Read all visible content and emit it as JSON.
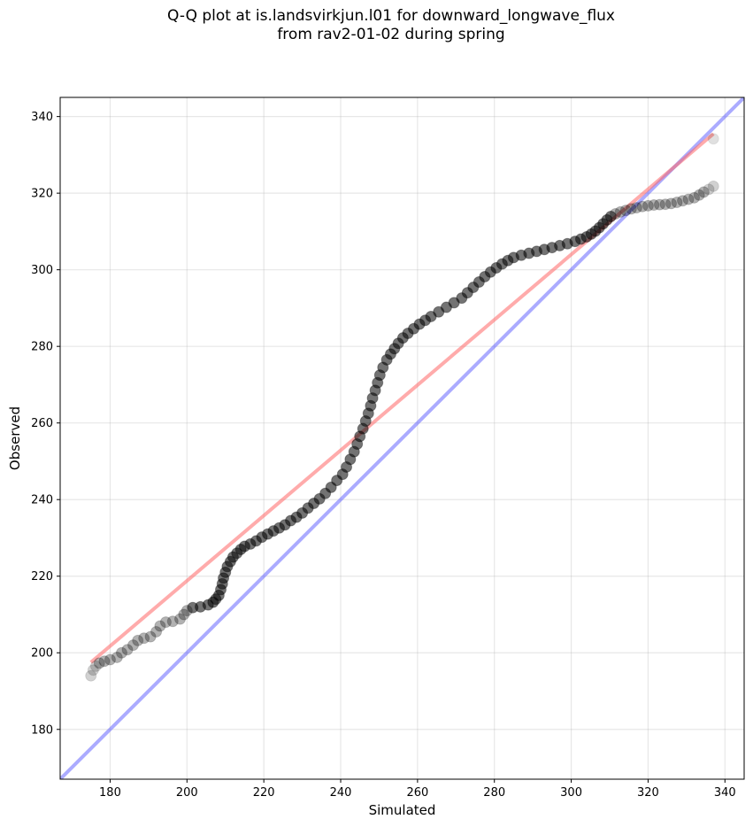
{
  "chart_data": {
    "type": "scatter",
    "title": "Q-Q plot at is.landsvirkjun.l01 for downward_longwave_flux",
    "subtitle": "from rav2-01-02 during spring",
    "xlabel": "Simulated",
    "ylabel": "Observed",
    "xlim": [
      167,
      345
    ],
    "ylim": [
      167,
      345
    ],
    "xticks": [
      180,
      200,
      220,
      240,
      260,
      280,
      300,
      320,
      340
    ],
    "yticks": [
      180,
      200,
      220,
      240,
      260,
      280,
      300,
      320,
      340
    ],
    "grid": true,
    "colors": {
      "points": "#000000",
      "fit_line": "#ff6666",
      "reference_line": "#6666ff"
    },
    "fit_line": {
      "x": [
        175,
        337
      ],
      "y": [
        197.5,
        335.5
      ]
    },
    "reference_line": {
      "x": [
        167,
        345
      ],
      "y": [
        167,
        345
      ]
    },
    "points": [
      [
        175,
        194
      ],
      [
        175.6,
        195.5
      ],
      [
        176.3,
        196.5
      ],
      [
        177.2,
        197.3
      ],
      [
        178.5,
        197.8
      ],
      [
        180,
        198.2
      ],
      [
        181.8,
        198.8
      ],
      [
        183,
        200
      ],
      [
        184.5,
        200.8
      ],
      [
        186,
        202
      ],
      [
        187.2,
        203.2
      ],
      [
        188.8,
        203.8
      ],
      [
        190.5,
        204.2
      ],
      [
        192,
        205.5
      ],
      [
        193,
        207
      ],
      [
        194.5,
        208
      ],
      [
        196.3,
        208.2
      ],
      [
        198.2,
        208.8
      ],
      [
        199.2,
        210
      ],
      [
        200,
        211
      ],
      [
        201.5,
        211.8
      ],
      [
        203.5,
        212
      ],
      [
        205.5,
        212.5
      ],
      [
        206.8,
        213.2
      ],
      [
        207.5,
        214
      ],
      [
        208.3,
        215
      ],
      [
        208.8,
        216.5
      ],
      [
        209.2,
        218
      ],
      [
        209.5,
        219.5
      ],
      [
        210,
        221
      ],
      [
        210.5,
        222.5
      ],
      [
        211.3,
        223.8
      ],
      [
        212,
        225
      ],
      [
        213,
        226
      ],
      [
        214,
        227
      ],
      [
        215,
        227.8
      ],
      [
        216.5,
        228.4
      ],
      [
        218,
        229.2
      ],
      [
        219.5,
        230.2
      ],
      [
        221,
        231
      ],
      [
        222.5,
        231.8
      ],
      [
        224,
        232.6
      ],
      [
        225.5,
        233.4
      ],
      [
        227,
        234.5
      ],
      [
        228.5,
        235.4
      ],
      [
        230,
        236.5
      ],
      [
        231.5,
        237.8
      ],
      [
        233,
        239
      ],
      [
        234.5,
        240.2
      ],
      [
        236,
        241.6
      ],
      [
        237.5,
        243.2
      ],
      [
        239,
        245
      ],
      [
        240.5,
        246.6
      ],
      [
        241.5,
        248.5
      ],
      [
        242.5,
        250.5
      ],
      [
        243.5,
        252.5
      ],
      [
        244.3,
        254.5
      ],
      [
        245,
        256.5
      ],
      [
        245.8,
        258.5
      ],
      [
        246.5,
        260.5
      ],
      [
        247.2,
        262.5
      ],
      [
        247.8,
        264.5
      ],
      [
        248.3,
        266.5
      ],
      [
        249,
        268.5
      ],
      [
        249.6,
        270.5
      ],
      [
        250.2,
        272.5
      ],
      [
        251,
        274.5
      ],
      [
        252,
        276.5
      ],
      [
        253,
        278
      ],
      [
        254,
        279.4
      ],
      [
        255,
        280.8
      ],
      [
        256.2,
        282.2
      ],
      [
        257.5,
        283.4
      ],
      [
        259,
        284.6
      ],
      [
        260.5,
        285.8
      ],
      [
        262,
        286.8
      ],
      [
        263.5,
        287.8
      ],
      [
        265.5,
        289
      ],
      [
        267.5,
        290.2
      ],
      [
        269.5,
        291.4
      ],
      [
        271.5,
        292.6
      ],
      [
        273,
        294
      ],
      [
        274.5,
        295.4
      ],
      [
        276,
        296.8
      ],
      [
        277.5,
        298.2
      ],
      [
        279,
        299.4
      ],
      [
        280.5,
        300.5
      ],
      [
        282,
        301.5
      ],
      [
        283.5,
        302.4
      ],
      [
        285,
        303.2
      ],
      [
        287,
        303.8
      ],
      [
        289,
        304.3
      ],
      [
        291,
        304.8
      ],
      [
        293,
        305.3
      ],
      [
        295,
        305.8
      ],
      [
        297,
        306.3
      ],
      [
        299,
        306.8
      ],
      [
        301,
        307.4
      ],
      [
        302.5,
        308
      ],
      [
        304,
        308.6
      ],
      [
        305.2,
        309.3
      ],
      [
        306.3,
        310.1
      ],
      [
        307.3,
        311
      ],
      [
        308.3,
        312
      ],
      [
        309.3,
        313
      ],
      [
        310.3,
        313.9
      ],
      [
        311.5,
        314.6
      ],
      [
        312.8,
        315.1
      ],
      [
        314.2,
        315.5
      ],
      [
        315.6,
        315.9
      ],
      [
        317,
        316.2
      ],
      [
        318.5,
        316.5
      ],
      [
        320,
        316.7
      ],
      [
        321.5,
        316.9
      ],
      [
        323,
        317
      ],
      [
        324.5,
        317.1
      ],
      [
        326,
        317.3
      ],
      [
        327.5,
        317.6
      ],
      [
        329,
        318
      ],
      [
        330.5,
        318.4
      ],
      [
        332,
        318.8
      ],
      [
        333.3,
        319.5
      ],
      [
        334.5,
        320.3
      ],
      [
        335.8,
        321
      ],
      [
        337,
        321.8
      ],
      [
        337,
        334.2
      ]
    ]
  }
}
